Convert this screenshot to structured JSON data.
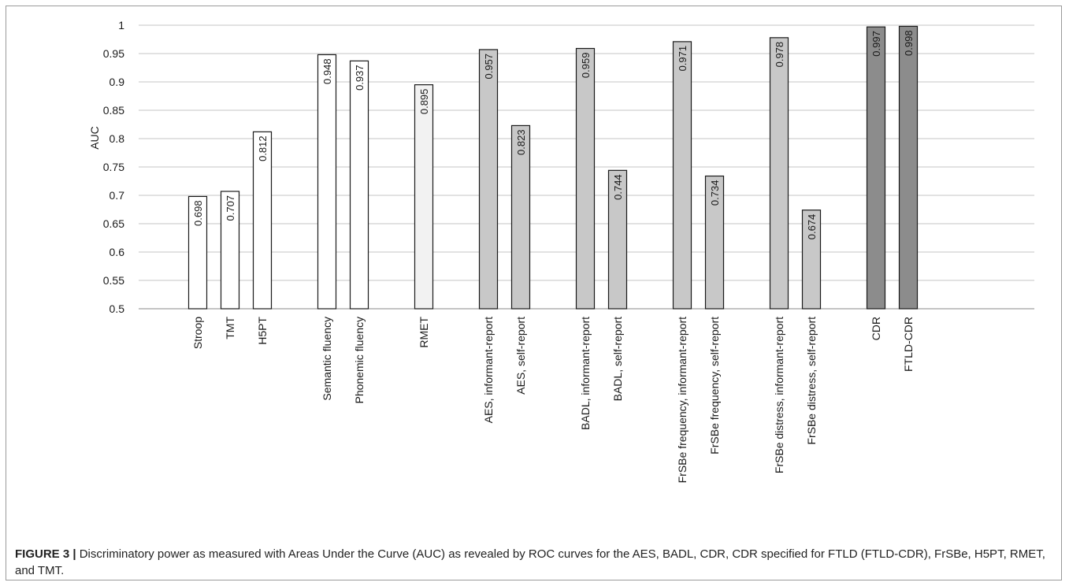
{
  "chart_data": {
    "type": "bar",
    "ylabel": "AUC",
    "ylim": [
      0.5,
      1
    ],
    "yticks": [
      0.5,
      0.55,
      0.6,
      0.65,
      0.7,
      0.75,
      0.8,
      0.85,
      0.9,
      0.95,
      1
    ],
    "ytick_labels": [
      "0.5",
      "0.55",
      "0.6",
      "0.65",
      "0.7",
      "0.75",
      "0.8",
      "0.85",
      "0.9",
      "0.95",
      "1"
    ],
    "grid": true,
    "categories": [
      "Stroop",
      "TMT",
      "H5PT",
      "Semantic fluency",
      "Phonemic fluency",
      "RMET",
      "AES, informant-report",
      "AES, self-report",
      "BADL, informant-report",
      "BADL, self-report",
      "FrSBe frequency, informant-report",
      "FrSBe frequency, self-report",
      "FrSBe distress, informant-report",
      "FrSBe distress, self-report",
      "CDR",
      "FTLD-CDR"
    ],
    "values": [
      0.698,
      0.707,
      0.812,
      0.948,
      0.937,
      0.895,
      0.957,
      0.823,
      0.959,
      0.744,
      0.971,
      0.734,
      0.978,
      0.674,
      0.997,
      0.998
    ],
    "value_labels": [
      "0.698",
      "0.707",
      "0.812",
      "0.948",
      "0.937",
      "0.895",
      "0.957",
      "0.823",
      "0.959",
      "0.744",
      "0.971",
      "0.734",
      "0.978",
      "0.674",
      "0.997",
      "0.998"
    ],
    "colors": [
      "#ffffff",
      "#ffffff",
      "#ffffff",
      "#ffffff",
      "#ffffff",
      "#f2f2f2",
      "#c8c8c8",
      "#c8c8c8",
      "#c8c8c8",
      "#c8c8c8",
      "#c8c8c8",
      "#c8c8c8",
      "#c8c8c8",
      "#c8c8c8",
      "#8c8c8c",
      "#8c8c8c"
    ]
  },
  "caption": {
    "label": "FIGURE 3 |",
    "text": " Discriminatory power as measured with Areas Under the Curve (AUC) as revealed by ROC curves for the AES, BADL, CDR, CDR specified for FTLD (FTLD-CDR), FrSBe, H5PT, RMET, and TMT."
  }
}
